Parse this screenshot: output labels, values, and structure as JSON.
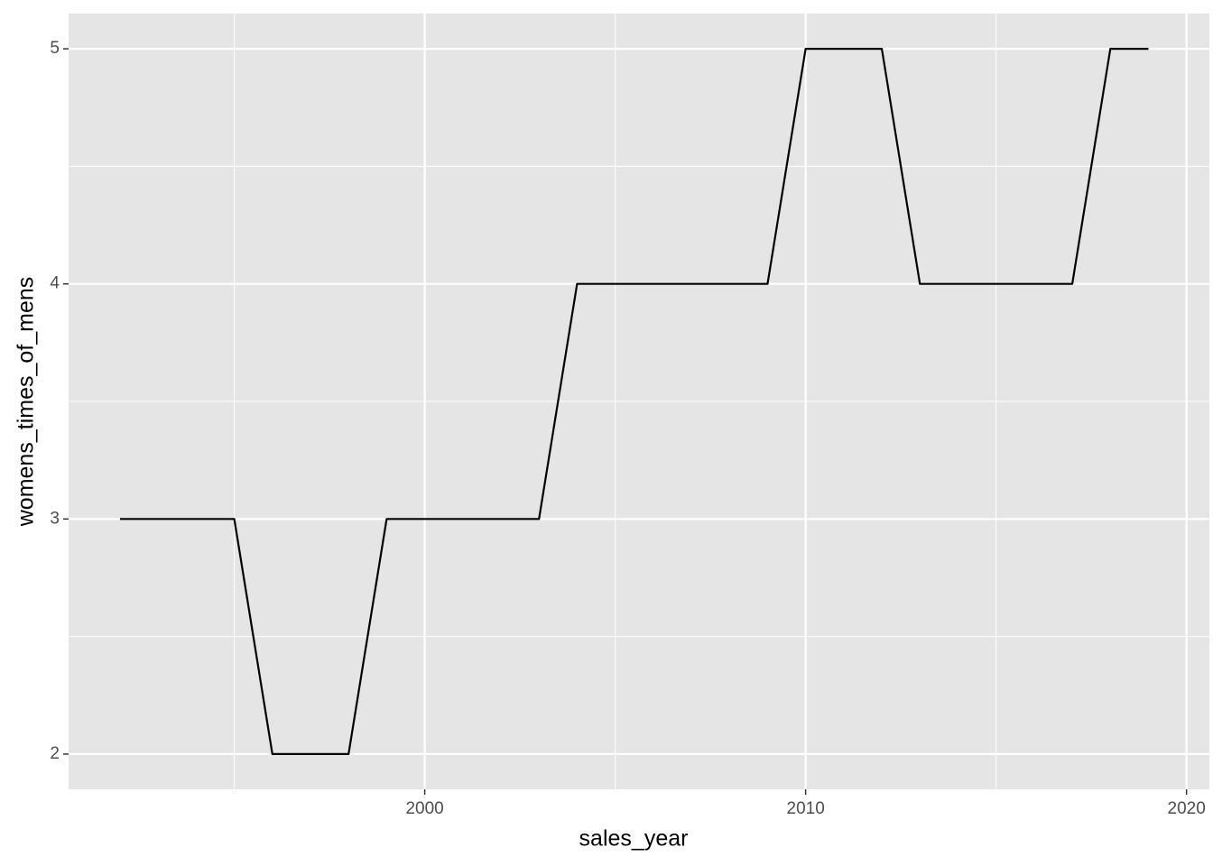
{
  "chart_data": {
    "type": "line",
    "x_label": "sales_year",
    "y_label": "womens_times_of_mens",
    "x": [
      1992,
      1993,
      1994,
      1995,
      1996,
      1997,
      1998,
      1999,
      2000,
      2001,
      2002,
      2003,
      2004,
      2005,
      2006,
      2007,
      2008,
      2009,
      2010,
      2011,
      2012,
      2013,
      2014,
      2015,
      2016,
      2017,
      2018,
      2019
    ],
    "values": [
      3,
      3,
      3,
      3,
      2,
      2,
      2,
      3,
      3,
      3,
      3,
      3,
      4,
      4,
      4,
      4,
      4,
      4,
      5,
      5,
      5,
      4,
      4,
      4,
      4,
      4,
      5,
      5
    ],
    "color": "#000000",
    "xlim": [
      1990.65,
      2020.6
    ],
    "xticks": [
      2000,
      2010,
      2020
    ],
    "ylim": [
      1.85,
      5.15
    ],
    "yticks": [
      2,
      3,
      4,
      5
    ],
    "grid": true
  }
}
